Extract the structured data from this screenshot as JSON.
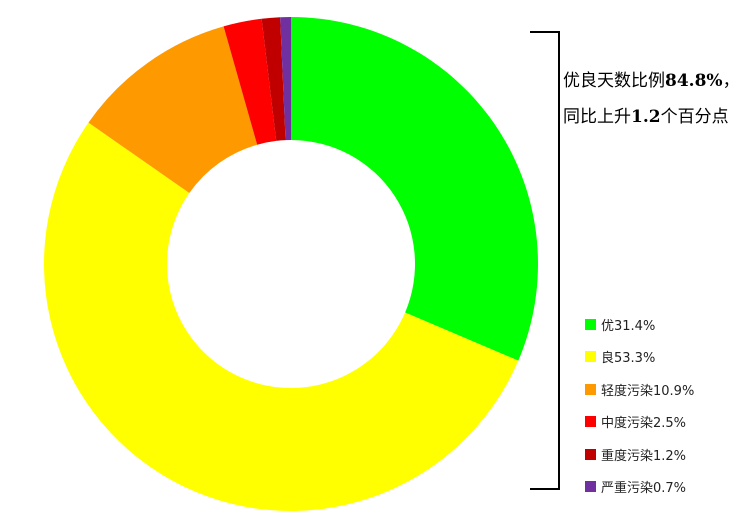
{
  "chart_data": {
    "type": "pie",
    "donut": true,
    "categories": [
      "优",
      "良",
      "轻度污染",
      "中度污染",
      "重度污染",
      "严重污染"
    ],
    "values": [
      31.4,
      53.3,
      10.9,
      2.5,
      1.2,
      0.7
    ],
    "colors": [
      "#00ff00",
      "#ffff00",
      "#ff9900",
      "#ff0000",
      "#c00000",
      "#7030a0"
    ],
    "legend_labels": [
      "优31.4%",
      "良53.3%",
      "轻度污染10.9%",
      "中度污染2.5%",
      "重度污染1.2%",
      "严重污染0.7%"
    ],
    "legend_position": "right",
    "start_angle": "top",
    "direction": "clockwise"
  },
  "annotation": {
    "line1_prefix": "优良天数比例",
    "line1_value": "84.8%",
    "line1_suffix": "，",
    "line2_prefix": "同比上升",
    "line2_value": "1.2",
    "line2_suffix": "个百分点"
  }
}
